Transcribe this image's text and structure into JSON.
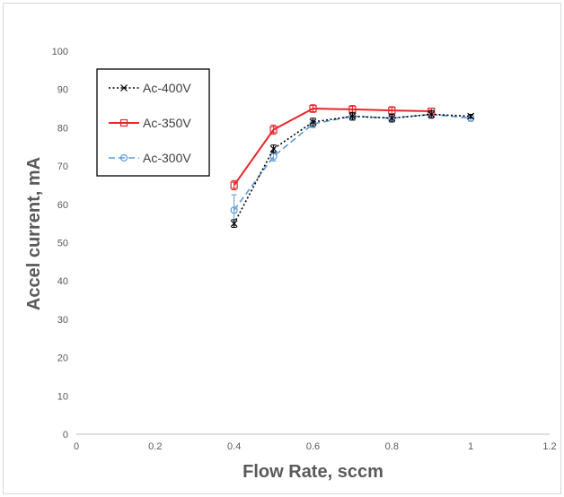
{
  "chart_data": {
    "type": "line",
    "title": "",
    "xlabel": "Flow Rate, sccm",
    "ylabel": "Accel current, mA",
    "xlim": [
      0,
      1.2
    ],
    "ylim": [
      0,
      100
    ],
    "x_ticks": [
      0,
      0.2,
      0.4,
      0.6,
      0.8,
      1,
      1.2
    ],
    "x_tick_labels": [
      "0",
      "0.2",
      "0.4",
      "0.6",
      "0.8",
      "1",
      "1.2"
    ],
    "y_ticks": [
      0,
      10,
      20,
      30,
      40,
      50,
      60,
      70,
      80,
      90,
      100
    ],
    "y_tick_labels": [
      "0",
      "10",
      "20",
      "30",
      "40",
      "50",
      "60",
      "70",
      "80",
      "90",
      "100"
    ],
    "grid": false,
    "legend_position": "top-left",
    "series": [
      {
        "name": "Ac-400V",
        "color": "#000000",
        "dash": "dotted",
        "marker": "x",
        "x": [
          0.4,
          0.5,
          0.6,
          0.7,
          0.8,
          0.9,
          1.0
        ],
        "y": [
          55,
          74.5,
          81.5,
          83,
          82.5,
          83.5,
          83
        ],
        "error": [
          1,
          1,
          1,
          1,
          1,
          1,
          0.5
        ]
      },
      {
        "name": "Ac-350V",
        "color": "#e8262a",
        "dash": "solid",
        "marker": "square",
        "x": [
          0.4,
          0.5,
          0.6,
          0.7,
          0.8,
          0.9
        ],
        "y": [
          65,
          79.5,
          85,
          84.8,
          84.5,
          84.3
        ],
        "error": [
          1.2,
          1.2,
          1,
          1,
          1,
          0.8
        ]
      },
      {
        "name": "Ac-300V",
        "color": "#5b9bd5",
        "dash": "dashed",
        "marker": "circle",
        "x": [
          0.4,
          0.5,
          0.6,
          0.7,
          0.8,
          0.9,
          1.0
        ],
        "y": [
          58.5,
          72.5,
          81,
          83,
          82.5,
          83.5,
          82.5
        ],
        "error": [
          4,
          1.2,
          1,
          1,
          1,
          0.8,
          0.8
        ]
      }
    ]
  }
}
